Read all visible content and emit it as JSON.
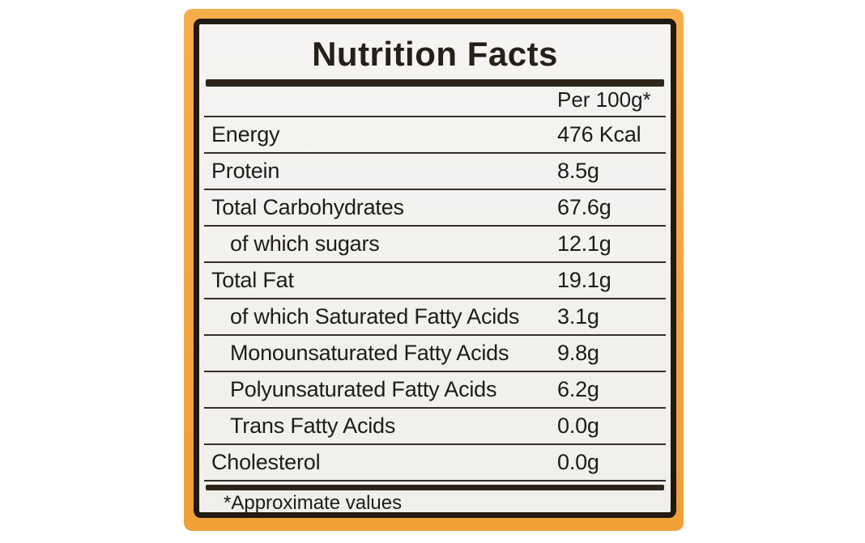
{
  "label": {
    "title": "Nutrition Facts",
    "column_header": "Per 100g*",
    "rows": [
      {
        "name": "Energy",
        "value": "476 Kcal",
        "indent": false
      },
      {
        "name": "Protein",
        "value": "8.5g",
        "indent": false
      },
      {
        "name": "Total Carbohydrates",
        "value": "67.6g",
        "indent": false
      },
      {
        "name": "of which sugars",
        "value": "12.1g",
        "indent": true
      },
      {
        "name": "Total Fat",
        "value": "19.1g",
        "indent": false
      },
      {
        "name": "of which Saturated Fatty Acids",
        "value": "3.1g",
        "indent": true
      },
      {
        "name": "Monounsaturated Fatty Acids",
        "value": "9.8g",
        "indent": true
      },
      {
        "name": "Polyunsaturated Fatty Acids",
        "value": "6.2g",
        "indent": true
      },
      {
        "name": "Trans Fatty Acids",
        "value": "0.0g",
        "indent": true
      },
      {
        "name": "Cholesterol",
        "value": "0.0g",
        "indent": false
      }
    ],
    "footnote": "*Approximate values",
    "colors": {
      "label_background": "#F2A640",
      "label_background_light": "#F6AE4B",
      "label_background_dark": "#EFA036",
      "panel_background": "#F3F1EE",
      "frame_ink": "#221A10",
      "bar_ink": "#2E2417",
      "rule_ink": "#34302B",
      "text_ink": "#1D1C1A"
    }
  }
}
